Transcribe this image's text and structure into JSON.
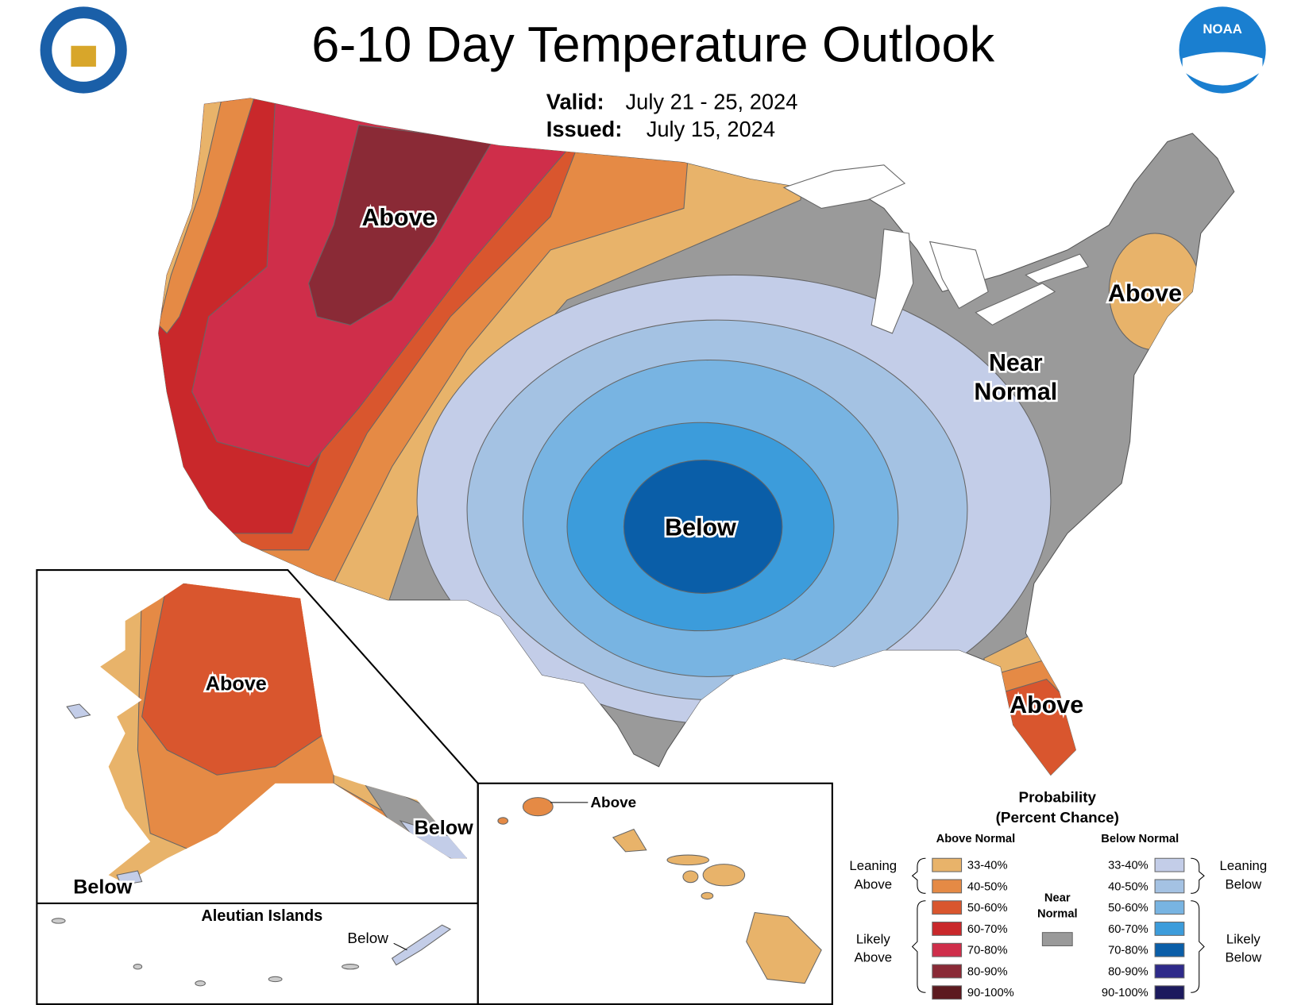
{
  "header": {
    "title": "6-10 Day Temperature Outlook",
    "valid_label": "Valid:",
    "valid_dates": "July 21 - 25, 2024",
    "issued_label": "Issued:",
    "issued_date": "July 15, 2024",
    "logo_text": "NOAA"
  },
  "map_labels": {
    "northwest": "Above",
    "central": "Below",
    "east_line1": "Near",
    "east_line2": "Normal",
    "northeast": "Above",
    "florida": "Above"
  },
  "alaska": {
    "center": "Above",
    "southeast": "Below",
    "southwest": "Below"
  },
  "aleutians": {
    "title": "Aleutian Islands",
    "label": "Below"
  },
  "hawaii": {
    "label": "Above"
  },
  "legend": {
    "title": "Probability",
    "subtitle": "(Percent Chance)",
    "above_normal": {
      "title": "Above Normal",
      "items": [
        {
          "label": "33-40%",
          "color": "#e8b36a"
        },
        {
          "label": "40-50%",
          "color": "#e58a45"
        },
        {
          "label": "50-60%",
          "color": "#d9562e"
        },
        {
          "label": "60-70%",
          "color": "#c9282b"
        },
        {
          "label": "70-80%",
          "color": "#cf2e4a"
        },
        {
          "label": "80-90%",
          "color": "#8a2a36"
        },
        {
          "label": "90-100%",
          "color": "#5c1a1f"
        }
      ]
    },
    "below_normal": {
      "title": "Below Normal",
      "items": [
        {
          "label": "33-40%",
          "color": "#c3cde8"
        },
        {
          "label": "40-50%",
          "color": "#a4c2e3"
        },
        {
          "label": "50-60%",
          "color": "#78b4e2"
        },
        {
          "label": "60-70%",
          "color": "#3c9cdb"
        },
        {
          "label": "70-80%",
          "color": "#0a5ea8"
        },
        {
          "label": "80-90%",
          "color": "#2e2a8a"
        },
        {
          "label": "90-100%",
          "color": "#1c1a5e"
        }
      ]
    },
    "near_normal": {
      "line1": "Near",
      "line2": "Normal",
      "color": "#9a9a9a"
    },
    "leaning_above": {
      "line1": "Leaning",
      "line2": "Above"
    },
    "likely_above": {
      "line1": "Likely",
      "line2": "Above"
    },
    "leaning_below": {
      "line1": "Leaning",
      "line2": "Below"
    },
    "likely_below": {
      "line1": "Likely",
      "line2": "Below"
    }
  }
}
